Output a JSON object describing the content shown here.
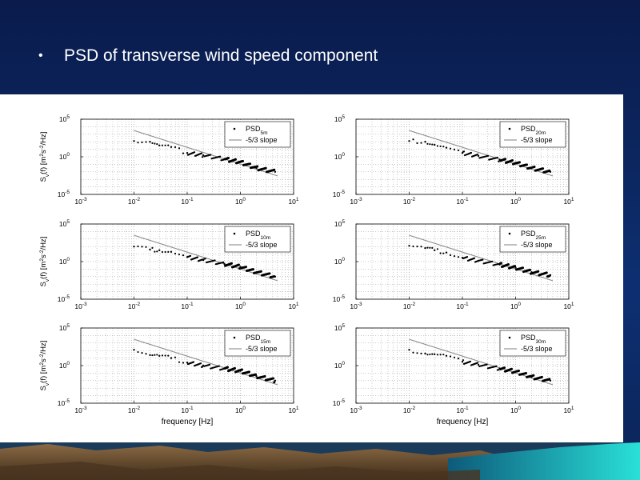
{
  "slide": {
    "bullet": "•",
    "title": "PSD of transverse wind speed component"
  },
  "chart_data": [
    {
      "type": "scatter",
      "id": "5m",
      "legend_point": "PSD",
      "legend_point_sub": "5m",
      "legend_line": "-5/3 slope",
      "ylabel": "S_v(f) [m^2s^-2/Hz]",
      "xlabel": "",
      "xscale": "log",
      "yscale": "log",
      "xlim": [
        0.001,
        10
      ],
      "ylim": [
        1e-05,
        100000
      ],
      "x_ticks": [
        "10^-3",
        "10^-2",
        "10^-1",
        "10^0",
        "10^1"
      ],
      "y_ticks": [
        "10^5",
        "10^0",
        "10^-5"
      ],
      "grid": true,
      "legend_position": "top-right",
      "series": [
        {
          "kind": "points",
          "x": [
            0.01,
            0.02,
            0.03,
            0.05,
            0.1,
            0.2,
            0.5,
            1,
            2,
            4.5
          ],
          "y": [
            125,
            100,
            32,
            20,
            3.2,
            1.6,
            0.5,
            0.2,
            0.032,
            0.01
          ]
        },
        {
          "kind": "line",
          "x": [
            0.01,
            5
          ],
          "y": [
            3162,
            0.0029
          ]
        }
      ]
    },
    {
      "type": "scatter",
      "id": "20m",
      "legend_point": "PSD",
      "legend_point_sub": "20m",
      "legend_line": "-5/3 slope",
      "ylabel": "",
      "xlabel": "",
      "xscale": "log",
      "yscale": "log",
      "xlim": [
        0.001,
        10
      ],
      "ylim": [
        1e-05,
        100000
      ],
      "x_ticks": [
        "10^-3",
        "10^-2",
        "10^-1",
        "10^0",
        "10^1"
      ],
      "y_ticks": [
        "10^5",
        "10^0",
        "10^-5"
      ],
      "grid": true,
      "legend_position": "top-right",
      "series": [
        {
          "kind": "points",
          "x": [
            0.01,
            0.02,
            0.03,
            0.05,
            0.1,
            0.2,
            0.5,
            1,
            2,
            4.5
          ],
          "y": [
            125,
            100,
            40,
            16,
            3.2,
            1.3,
            0.4,
            0.16,
            0.032,
            0.01
          ]
        },
        {
          "kind": "line",
          "x": [
            0.01,
            5
          ],
          "y": [
            3162,
            0.0029
          ]
        }
      ]
    },
    {
      "type": "scatter",
      "id": "10m",
      "legend_point": "PSD",
      "legend_point_sub": "10m",
      "legend_line": "-5/3 slope",
      "ylabel": "S_v(f) [m^2s^-2/Hz]",
      "xlabel": "",
      "xscale": "log",
      "yscale": "log",
      "xlim": [
        0.001,
        10
      ],
      "ylim": [
        1e-05,
        100000
      ],
      "x_ticks": [
        "10^-3",
        "10^-2",
        "10^-1",
        "10^0",
        "10^1"
      ],
      "y_ticks": [
        "10^5",
        "10^0",
        "10^-5"
      ],
      "grid": true,
      "legend_position": "top-right",
      "series": [
        {
          "kind": "points",
          "x": [
            0.01,
            0.02,
            0.03,
            0.05,
            0.1,
            0.2,
            0.5,
            1,
            2,
            4.5
          ],
          "y": [
            100,
            40,
            32,
            20,
            4,
            1.6,
            0.5,
            0.2,
            0.04,
            0.01
          ]
        },
        {
          "kind": "line",
          "x": [
            0.01,
            5
          ],
          "y": [
            3162,
            0.0029
          ]
        }
      ]
    },
    {
      "type": "scatter",
      "id": "25m",
      "legend_point": "PSD",
      "legend_point_sub": "25m",
      "legend_line": "-5/3 slope",
      "ylabel": "",
      "xlabel": "",
      "xscale": "log",
      "yscale": "log",
      "xlim": [
        0.001,
        10
      ],
      "ylim": [
        1e-05,
        100000
      ],
      "x_ticks": [
        "10^-3",
        "10^-2",
        "10^-1",
        "10^0",
        "10^1"
      ],
      "y_ticks": [
        "10^5",
        "10^0",
        "10^-5"
      ],
      "grid": true,
      "legend_position": "top-right",
      "series": [
        {
          "kind": "points",
          "x": [
            0.01,
            0.02,
            0.03,
            0.05,
            0.1,
            0.2,
            0.5,
            1,
            2,
            4.5
          ],
          "y": [
            125,
            63,
            32,
            16,
            3.2,
            1.3,
            0.4,
            0.16,
            0.04,
            0.016
          ]
        },
        {
          "kind": "line",
          "x": [
            0.01,
            5
          ],
          "y": [
            3162,
            0.0029
          ]
        }
      ]
    },
    {
      "type": "scatter",
      "id": "15m",
      "legend_point": "PSD",
      "legend_point_sub": "15m",
      "legend_line": "-5/3 slope",
      "ylabel": "S_v(f) [m^2s^-2/Hz]",
      "xlabel": "frequency [Hz]",
      "xscale": "log",
      "yscale": "log",
      "xlim": [
        0.001,
        10
      ],
      "ylim": [
        1e-05,
        100000
      ],
      "x_ticks": [
        "10^-3",
        "10^-2",
        "10^-1",
        "10^0",
        "10^1"
      ],
      "y_ticks": [
        "10^5",
        "10^0",
        "10^-5"
      ],
      "grid": true,
      "legend_position": "top-right",
      "series": [
        {
          "kind": "points",
          "x": [
            0.01,
            0.02,
            0.03,
            0.05,
            0.1,
            0.2,
            0.5,
            1,
            2,
            4.5
          ],
          "y": [
            125,
            25,
            20,
            10,
            2.5,
            1,
            0.4,
            0.2,
            0.04,
            0.01
          ]
        },
        {
          "kind": "line",
          "x": [
            0.01,
            5
          ],
          "y": [
            3162,
            0.0029
          ]
        }
      ]
    },
    {
      "type": "scatter",
      "id": "30m",
      "legend_point": "PSD",
      "legend_point_sub": "30m",
      "legend_line": "-5/3 slope",
      "ylabel": "",
      "xlabel": "frequency [Hz]",
      "xscale": "log",
      "yscale": "log",
      "xlim": [
        0.001,
        10
      ],
      "ylim": [
        1e-05,
        100000
      ],
      "x_ticks": [
        "10^-3",
        "10^-2",
        "10^-1",
        "10^0",
        "10^1"
      ],
      "y_ticks": [
        "10^5",
        "10^0",
        "10^-5"
      ],
      "grid": true,
      "legend_position": "top-right",
      "series": [
        {
          "kind": "points",
          "x": [
            0.01,
            0.02,
            0.03,
            0.05,
            0.1,
            0.2,
            0.5,
            1,
            2,
            4.5
          ],
          "y": [
            125,
            40,
            32,
            20,
            3.2,
            1.3,
            0.4,
            0.16,
            0.032,
            0.01
          ]
        },
        {
          "kind": "line",
          "x": [
            0.01,
            5
          ],
          "y": [
            3162,
            0.0029
          ]
        }
      ]
    }
  ]
}
